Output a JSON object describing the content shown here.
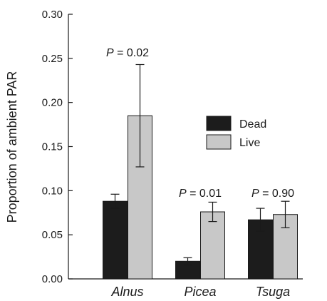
{
  "chart_data": {
    "type": "bar",
    "ylabel": "Proportion of ambient PAR",
    "ylim": [
      0,
      0.3
    ],
    "yticks": [
      "0.00",
      "0.05",
      "0.10",
      "0.15",
      "0.20",
      "0.25",
      "0.30"
    ],
    "categories": [
      "Alnus",
      "Picea",
      "Tsuga"
    ],
    "series": [
      {
        "name": "Dead",
        "color": "#1c1c1c",
        "values": [
          0.088,
          0.02,
          0.067
        ],
        "errors": [
          0.008,
          0.004,
          0.013
        ]
      },
      {
        "name": "Live",
        "color": "#c8c8c8",
        "values": [
          0.185,
          0.076,
          0.073
        ],
        "errors": [
          0.058,
          0.011,
          0.015
        ]
      }
    ],
    "annotations": [
      "P = 0.02",
      "P = 0.01",
      "P = 0.90"
    ],
    "legend_position": "upper-right",
    "grid": false
  }
}
